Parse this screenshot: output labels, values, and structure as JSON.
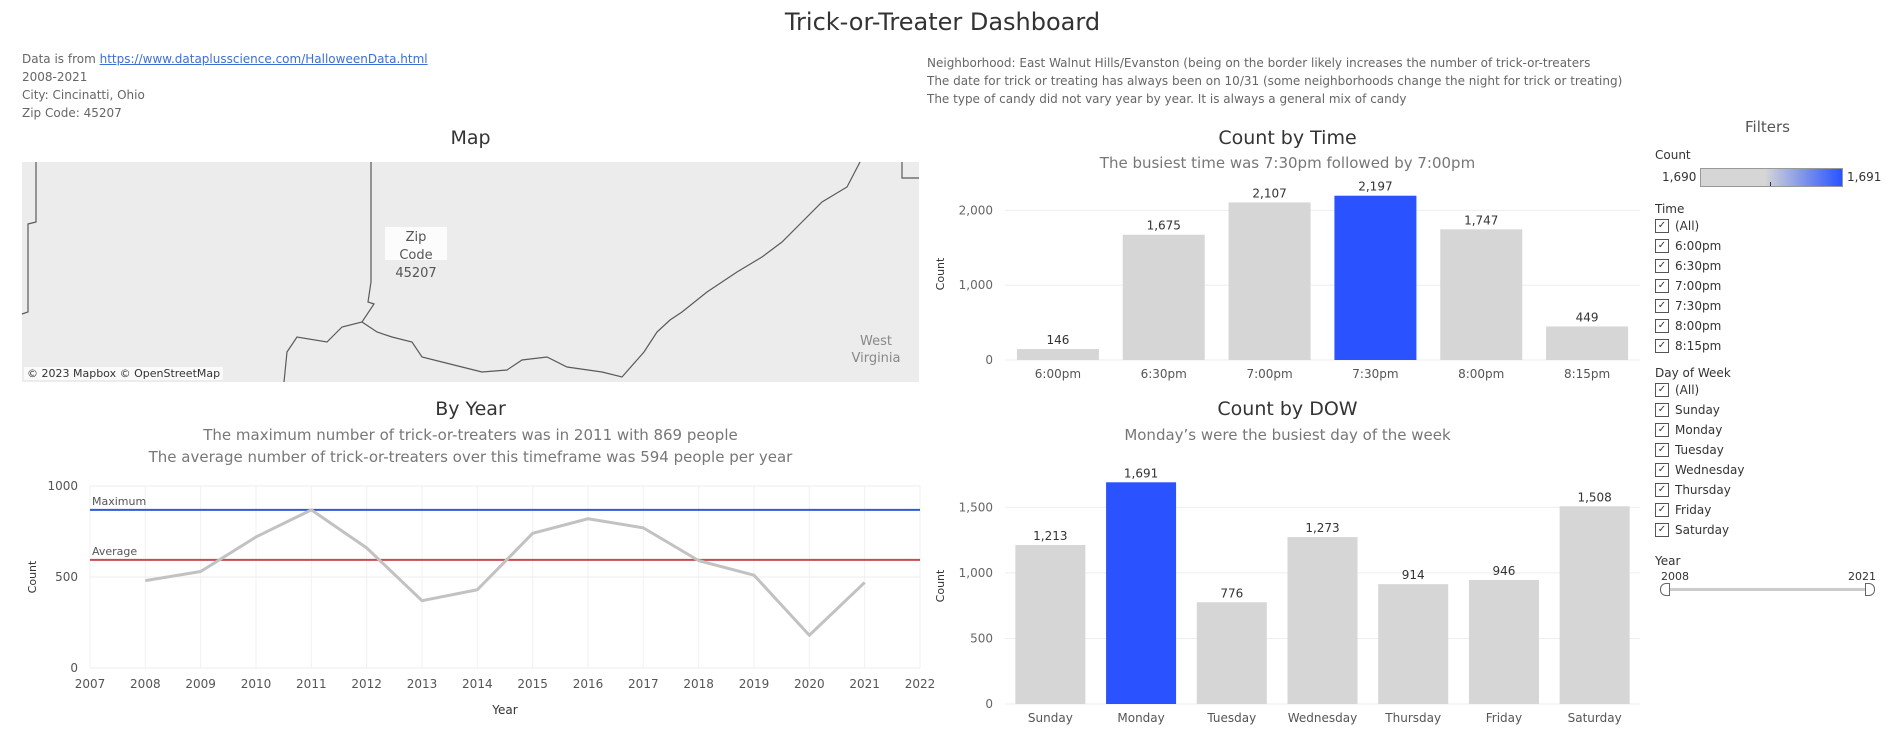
{
  "dashboard": {
    "title": "Trick-or-Treater Dashboard",
    "info_left": {
      "source_prefix": "Data is from ",
      "source_link": "https://www.dataplusscience.com/HalloweenData.html",
      "years": "2008-2021",
      "city": "City: Cincinatti, Ohio",
      "zip": "Zip Code: 45207"
    },
    "info_right": [
      "Neighborhood: East Walnut Hills/Evanston (being on the border likely increases the number of trick-or-treaters",
      "The date for trick or treating has always been on 10/31 (some neighborhoods change the night for trick or treating)",
      "The type of candy did not vary year by year. It is always a general mix of candy"
    ]
  },
  "map": {
    "title": "Map",
    "zip_label": [
      "Zip",
      "Code",
      "45207"
    ],
    "state_label": [
      "West",
      "Virginia"
    ],
    "credit": "© 2023 Mapbox  © OpenStreetMap"
  },
  "filters": {
    "title": "Filters",
    "count": {
      "label": "Count",
      "min": "1,690",
      "max": "1,691"
    },
    "time": {
      "label": "Time",
      "options": [
        "(All)",
        "6:00pm",
        "6:30pm",
        "7:00pm",
        "7:30pm",
        "8:00pm",
        "8:15pm"
      ]
    },
    "dow": {
      "label": "Day of Week",
      "options": [
        "(All)",
        "Sunday",
        "Monday",
        "Tuesday",
        "Wednesday",
        "Thursday",
        "Friday",
        "Saturday"
      ]
    },
    "year": {
      "label": "Year",
      "min": "2008",
      "max": "2021"
    }
  },
  "colors": {
    "highlight": "#2a53ff",
    "bar": "#d6d6d6",
    "line": "#c2c2c2",
    "max_line": "#2e5bd6",
    "avg_line": "#c94a52"
  },
  "chart_data": [
    {
      "id": "count_by_time",
      "type": "bar",
      "title": "Count by Time",
      "subtitle": "The busiest time was 7:30pm followed by 7:00pm",
      "ylabel": "Count",
      "ylim": [
        0,
        2300
      ],
      "yticks": [
        0,
        1000,
        2000
      ],
      "ytick_labels": [
        "0",
        "1,000",
        "2,000"
      ],
      "categories": [
        "6:00pm",
        "6:30pm",
        "7:00pm",
        "7:30pm",
        "8:00pm",
        "8:15pm"
      ],
      "values": [
        146,
        1675,
        2107,
        2197,
        1747,
        449
      ],
      "value_labels": [
        "146",
        "1,675",
        "2,107",
        "2,197",
        "1,747",
        "449"
      ],
      "highlight": [
        "7:30pm"
      ]
    },
    {
      "id": "count_by_dow",
      "type": "bar",
      "title": "Count by DOW",
      "subtitle": "Monday’s were the busiest day of the week",
      "ylabel": "Count",
      "ylim": [
        0,
        1800
      ],
      "yticks": [
        0,
        500,
        1000,
        1500
      ],
      "ytick_labels": [
        "0",
        "500",
        "1,000",
        "1,500"
      ],
      "categories": [
        "Sunday",
        "Monday",
        "Tuesday",
        "Wednesday",
        "Thursday",
        "Friday",
        "Saturday"
      ],
      "values": [
        1213,
        1691,
        776,
        1273,
        914,
        946,
        1508
      ],
      "value_labels": [
        "1,213",
        "1,691",
        "776",
        "1,273",
        "914",
        "946",
        "1,508"
      ],
      "highlight": [
        "Monday"
      ]
    },
    {
      "id": "by_year",
      "type": "line",
      "title": "By Year",
      "subtitles": [
        "The maximum number of trick-or-treaters was in 2011 with 869 people",
        "The average number of trick-or-treaters over this timeframe was 594 people per year"
      ],
      "xlabel": "Year",
      "ylabel": "Count",
      "xlim": [
        2007,
        2022
      ],
      "ylim": [
        0,
        1000
      ],
      "yticks": [
        0,
        500,
        1000
      ],
      "x": [
        2008,
        2009,
        2010,
        2011,
        2012,
        2013,
        2014,
        2015,
        2016,
        2017,
        2018,
        2019,
        2020,
        2021
      ],
      "y": [
        480,
        530,
        720,
        869,
        660,
        370,
        430,
        740,
        820,
        770,
        590,
        510,
        180,
        470
      ],
      "reference_lines": [
        {
          "name": "Maximum",
          "value": 869
        },
        {
          "name": "Average",
          "value": 594
        }
      ]
    }
  ]
}
